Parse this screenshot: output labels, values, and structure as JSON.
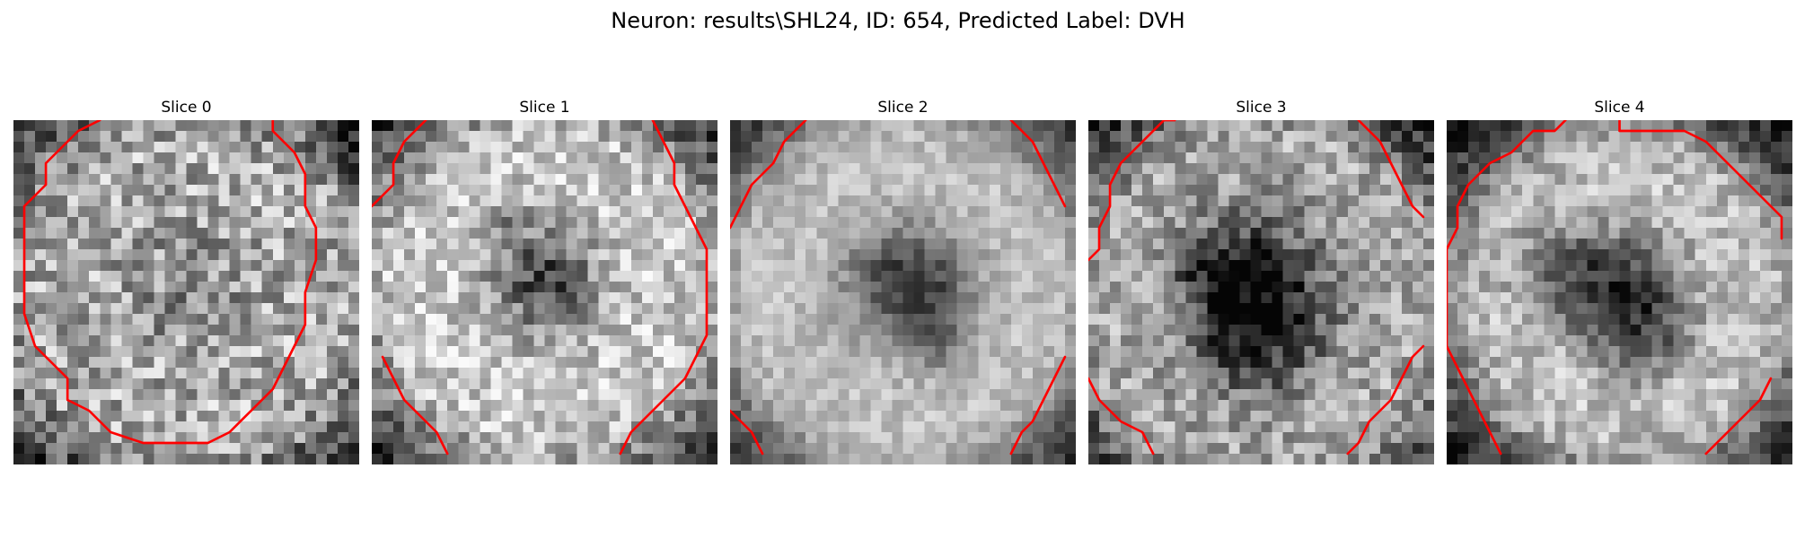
{
  "figure": {
    "title": "Neuron: results\\SHL24, ID: 654, Predicted Label: DVH"
  },
  "panels": [
    {
      "title": "Slice 0"
    },
    {
      "title": "Slice 1"
    },
    {
      "title": "Slice 2"
    },
    {
      "title": "Slice 3"
    },
    {
      "title": "Slice 4"
    }
  ],
  "colors": {
    "contour": "#ff0000",
    "background": "#ffffff"
  }
}
